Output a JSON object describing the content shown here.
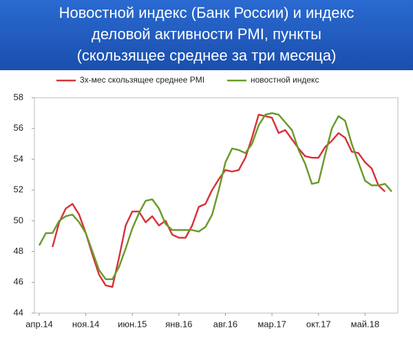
{
  "chart_data": {
    "type": "line",
    "title": [
      "Новостной индекс (Банк России) и индекс",
      "деловой активности PMI, пункты",
      "(скользящее среднее за три месяца)"
    ],
    "categories": [
      "апр.14",
      null,
      null,
      null,
      null,
      null,
      null,
      "ноя.14",
      null,
      null,
      null,
      null,
      null,
      null,
      "июн.15",
      null,
      null,
      null,
      null,
      null,
      null,
      "янв.16",
      null,
      null,
      null,
      null,
      null,
      null,
      "авг.16",
      null,
      null,
      null,
      null,
      null,
      null,
      "мар.17",
      null,
      null,
      null,
      null,
      null,
      null,
      "окт.17",
      null,
      null,
      null,
      null,
      null,
      null,
      "май.18",
      null,
      null,
      null,
      null
    ],
    "series": [
      {
        "name": "3х-мес скользящее среднее PMI",
        "color": "#d8333a",
        "values": [
          null,
          null,
          48.3,
          49.9,
          50.8,
          51.1,
          50.4,
          49.2,
          47.8,
          46.5,
          45.8,
          45.7,
          47.6,
          49.7,
          50.6,
          50.6,
          49.9,
          50.3,
          49.7,
          50.0,
          49.1,
          48.9,
          48.9,
          49.7,
          50.9,
          51.1,
          52.0,
          52.7,
          53.3,
          53.2,
          53.3,
          54.1,
          55.4,
          56.9,
          56.8,
          56.7,
          55.7,
          55.9,
          55.3,
          54.7,
          54.2,
          54.1,
          54.1,
          54.8,
          55.2,
          55.7,
          55.4,
          54.5,
          54.4,
          53.8,
          53.4,
          52.3,
          51.9,
          null
        ]
      },
      {
        "name": "новостной индекс",
        "color": "#6a9a2a",
        "values": [
          48.4,
          49.2,
          49.2,
          50.0,
          50.3,
          50.4,
          49.9,
          49.2,
          48.0,
          46.8,
          46.2,
          46.2,
          47.0,
          48.2,
          49.5,
          50.5,
          51.3,
          51.4,
          50.8,
          49.8,
          49.4,
          49.4,
          49.4,
          49.4,
          49.3,
          49.6,
          50.4,
          52.0,
          53.8,
          54.7,
          54.6,
          54.4,
          55.0,
          56.2,
          56.9,
          57.0,
          56.9,
          56.4,
          55.9,
          54.6,
          53.7,
          52.4,
          52.5,
          54.3,
          56.0,
          56.8,
          56.5,
          55.0,
          53.8,
          52.6,
          52.3,
          52.3,
          52.4,
          51.9
        ]
      }
    ],
    "ylim": [
      44,
      58
    ],
    "yticks": [
      44,
      46,
      48,
      50,
      52,
      54,
      56,
      58
    ],
    "grid": false,
    "legend": "top"
  }
}
